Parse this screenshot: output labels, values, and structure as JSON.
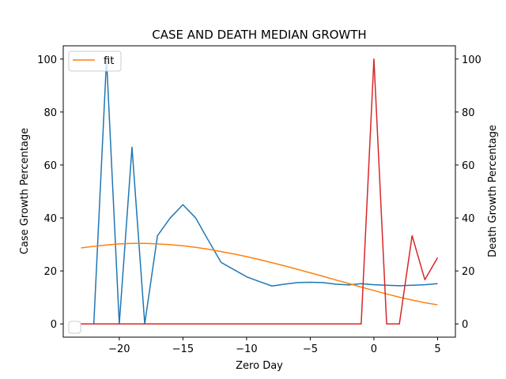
{
  "chart_data": {
    "type": "line",
    "title": "CASE AND DEATH MEDIAN GROWTH",
    "xlabel": "Zero Day",
    "ylabel_left": "Case Growth Percentage",
    "ylabel_right": "Death Growth Percentage",
    "xlim": [
      -24.4,
      6.4
    ],
    "ylim_left": [
      -5,
      105
    ],
    "ylim_right": [
      -5,
      105
    ],
    "x_ticks": [
      -20,
      -15,
      -10,
      -5,
      0,
      5
    ],
    "x_tick_labels": [
      "−20",
      "−15",
      "−10",
      "−5",
      "0",
      "5"
    ],
    "y_ticks_left": [
      0,
      20,
      40,
      60,
      80,
      100
    ],
    "y_ticks_right": [
      0,
      20,
      40,
      60,
      80,
      100
    ],
    "grid": false,
    "legend": {
      "placement": "top-left",
      "entries": [
        "fit",
        ""
      ]
    },
    "series": [
      {
        "name": "",
        "axis": "left",
        "color": "#1f77b4",
        "x": [
          -23,
          -22,
          -21,
          -20,
          -19,
          -18,
          -17,
          -16,
          -15,
          -14,
          -13,
          -12,
          -11,
          -10,
          -9,
          -8,
          -7,
          -6,
          -5,
          -4,
          -3,
          -2,
          -1,
          0,
          1,
          2,
          3,
          4,
          5
        ],
        "y": [
          0,
          0,
          100,
          0,
          66.7,
          0,
          33.3,
          40,
          45,
          40,
          31.5,
          23.2,
          20.5,
          17.8,
          16,
          14.3,
          15,
          15.6,
          15.7,
          15.6,
          15,
          14.7,
          15.2,
          14.8,
          14.6,
          14.4,
          14.6,
          14.8,
          15.2
        ]
      },
      {
        "name": "fit",
        "axis": "left",
        "color": "#ff7f0e",
        "x": [
          -23,
          -22,
          -21,
          -20,
          -19,
          -18,
          -17,
          -16,
          -15,
          -14,
          -13,
          -12,
          -11,
          -10,
          -9,
          -8,
          -7,
          -6,
          -5,
          -4,
          -3,
          -2,
          -1,
          0,
          1,
          2,
          3,
          4,
          5
        ],
        "y": [
          28.7,
          29.3,
          29.8,
          30.2,
          30.4,
          30.4,
          30.2,
          29.9,
          29.5,
          28.9,
          28.2,
          27.3,
          26.4,
          25.4,
          24.3,
          23.1,
          21.9,
          20.6,
          19.3,
          18,
          16.6,
          15.3,
          13.9,
          12.6,
          11.3,
          10.1,
          9,
          8,
          7.2
        ]
      },
      {
        "name": "",
        "axis": "right",
        "color": "#d62728",
        "x": [
          -23,
          -22,
          -21,
          -20,
          -19,
          -18,
          -17,
          -16,
          -15,
          -14,
          -13,
          -12,
          -11,
          -10,
          -9,
          -8,
          -7,
          -6,
          -5,
          -4,
          -3,
          -2,
          -1,
          0,
          1,
          2,
          3,
          4,
          5
        ],
        "y": [
          0,
          0,
          0,
          0,
          0,
          0,
          0,
          0,
          0,
          0,
          0,
          0,
          0,
          0,
          0,
          0,
          0,
          0,
          0,
          0,
          0,
          0,
          0,
          100,
          0,
          0,
          33.3,
          16.7,
          25
        ]
      }
    ]
  }
}
